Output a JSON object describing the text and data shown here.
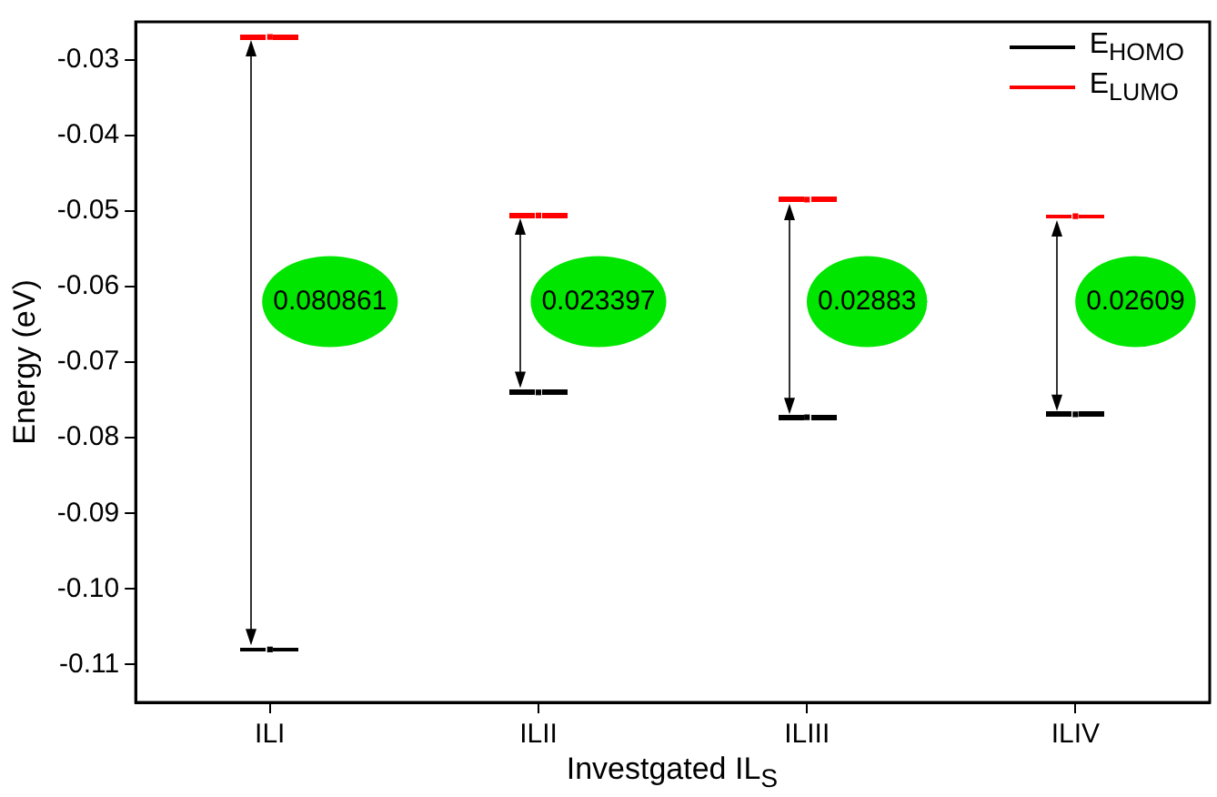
{
  "chart_data": {
    "type": "scatter",
    "ylabel": "Energy (eV)",
    "xlabel": "Investgated IL$_{S}$",
    "categories": [
      "ILI",
      "ILII",
      "ILIII",
      "ILIV"
    ],
    "series": [
      {
        "name": "E$_{HOMO}$",
        "color": "#000000",
        "values": [
          -0.108,
          -0.074,
          -0.0773,
          -0.0769
        ]
      },
      {
        "name": "E$_{LUMO}$",
        "color": "#ff0000",
        "values": [
          -0.027,
          -0.0506,
          -0.0485,
          -0.0507
        ]
      }
    ],
    "ylim": [
      -0.115,
      -0.025
    ],
    "yticks": [
      {
        "value": -0.11,
        "label": "-0.11"
      },
      {
        "value": -0.1,
        "label": "-0.10"
      },
      {
        "value": -0.09,
        "label": "-0.09"
      },
      {
        "value": -0.08,
        "label": "-0.08"
      },
      {
        "value": -0.07,
        "label": "-0.07"
      },
      {
        "value": -0.06,
        "label": "-0.06"
      },
      {
        "value": -0.05,
        "label": "-0.05"
      },
      {
        "value": -0.04,
        "label": "-0.04"
      },
      {
        "value": -0.03,
        "label": "-0.03"
      }
    ],
    "grid": false,
    "legend": "top right",
    "annotations": [
      "0.080861",
      "0.023397",
      "0.02883",
      "0.02609"
    ]
  }
}
